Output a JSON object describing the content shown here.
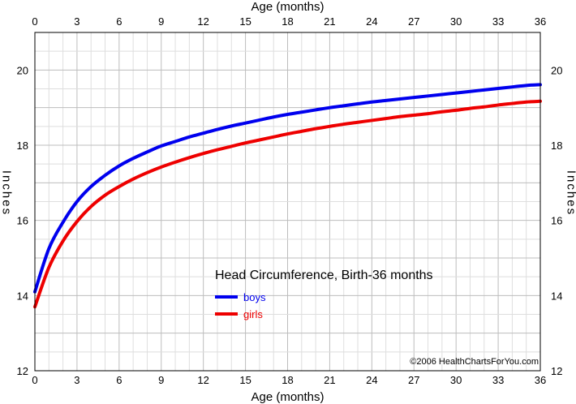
{
  "chart_data": {
    "type": "line",
    "title": "Head Circumference, Birth-36 months",
    "xlabel": "Age (months)",
    "ylabel": "Inches",
    "xlim": [
      0,
      36
    ],
    "ylim": [
      12,
      21
    ],
    "x_ticks": [
      0,
      3,
      6,
      9,
      12,
      15,
      18,
      21,
      24,
      27,
      30,
      33,
      36
    ],
    "y_ticks": [
      12,
      14,
      16,
      18,
      20
    ],
    "grid": true,
    "legend_position": "center",
    "credit": "©2006 HealthChartsForYou.com",
    "x": [
      0,
      1,
      2,
      3,
      4,
      5,
      6,
      7,
      8,
      9,
      10,
      11,
      12,
      13,
      14,
      15,
      16,
      17,
      18,
      19,
      20,
      21,
      22,
      23,
      24,
      25,
      26,
      27,
      28,
      29,
      30,
      31,
      32,
      33,
      34,
      35,
      36
    ],
    "series": [
      {
        "name": "boys",
        "color": "#0000ee",
        "values": [
          14.1,
          15.25,
          15.95,
          16.5,
          16.9,
          17.2,
          17.45,
          17.65,
          17.82,
          17.98,
          18.1,
          18.22,
          18.32,
          18.42,
          18.51,
          18.59,
          18.67,
          18.75,
          18.82,
          18.88,
          18.94,
          19.0,
          19.05,
          19.1,
          19.15,
          19.19,
          19.23,
          19.27,
          19.31,
          19.35,
          19.39,
          19.43,
          19.47,
          19.51,
          19.55,
          19.59,
          19.61
        ]
      },
      {
        "name": "girls",
        "color": "#ee0000",
        "values": [
          13.7,
          14.75,
          15.45,
          15.97,
          16.37,
          16.67,
          16.9,
          17.1,
          17.27,
          17.42,
          17.55,
          17.67,
          17.78,
          17.88,
          17.97,
          18.06,
          18.14,
          18.22,
          18.3,
          18.37,
          18.44,
          18.5,
          18.56,
          18.61,
          18.66,
          18.71,
          18.76,
          18.8,
          18.84,
          18.89,
          18.93,
          18.98,
          19.02,
          19.07,
          19.11,
          19.15,
          19.17
        ]
      }
    ]
  }
}
